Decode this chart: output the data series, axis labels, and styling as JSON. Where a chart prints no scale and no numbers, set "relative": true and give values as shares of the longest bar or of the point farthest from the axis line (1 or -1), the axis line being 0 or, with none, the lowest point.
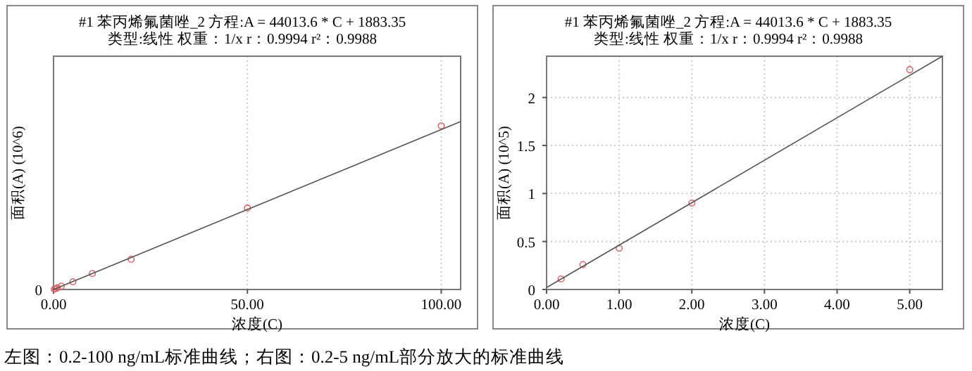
{
  "chart_data": [
    {
      "type": "scatter",
      "title": "#1   苯丙烯氟菌唑_2   方程:A =  44013.6 * C + 1883.35",
      "subtitle": "类型:线性   权重：1/x   r：0.9994  r²：0.9988",
      "xlabel": "浓度(C)",
      "ylabel": "面积(A) (10^6)",
      "relative": true,
      "xlim": [
        0,
        105
      ],
      "xticks": [
        {
          "value": 0,
          "label": "0.00"
        },
        {
          "value": 50,
          "label": "50.00"
        },
        {
          "value": 100,
          "label": "100.00"
        }
      ],
      "grid": "x",
      "series": [
        {
          "marker": "circle",
          "color": "#e06666",
          "x": [
            0.2,
            0.5,
            1,
            2,
            5,
            10,
            20,
            50,
            100
          ],
          "values": [
            0.002,
            0.005,
            0.01,
            0.02,
            0.046,
            0.095,
            0.18,
            0.485,
            0.974
          ]
        },
        {
          "type": "line",
          "color": "#555555",
          "x": [
            0,
            105
          ],
          "values": [
            0,
            1
          ]
        }
      ],
      "annotations": [
        {
          "text": "0",
          "x": 0,
          "y": 0
        },
        "左图：0.2-100 ng/mL标准曲线；右图：0.2-5 ng/mL部分放大的标准曲线"
      ]
    },
    {
      "type": "scatter",
      "title": "#1   苯丙烯氟菌唑_2   方程:A =  44013.6 * C + 1883.35",
      "subtitle": "类型:线性   权重：1/x   r：0.9994  r²：0.9988",
      "xlabel": "浓度(C)",
      "ylabel": "面积(A) (10^5)",
      "xlim": [
        0,
        5.45
      ],
      "ylim": [
        0,
        2.43
      ],
      "xticks": [
        {
          "value": 0,
          "label": "0.00"
        },
        {
          "value": 1,
          "label": "1.00"
        },
        {
          "value": 2,
          "label": "2.00"
        },
        {
          "value": 3,
          "label": "3.00"
        },
        {
          "value": 4,
          "label": "4.00"
        },
        {
          "value": 5,
          "label": "5.00"
        }
      ],
      "yticks": [
        0,
        0.5,
        1,
        1.5,
        2
      ],
      "grid": true,
      "series": [
        {
          "marker": "circle",
          "color": "#e06666",
          "x": [
            0.2,
            0.5,
            1,
            2,
            5
          ],
          "values": [
            0.11,
            0.26,
            0.43,
            0.9,
            2.29
          ]
        },
        {
          "type": "line",
          "color": "#555555",
          "x": [
            0,
            5.45
          ],
          "values": [
            0.02,
            2.43
          ]
        }
      ]
    }
  ]
}
